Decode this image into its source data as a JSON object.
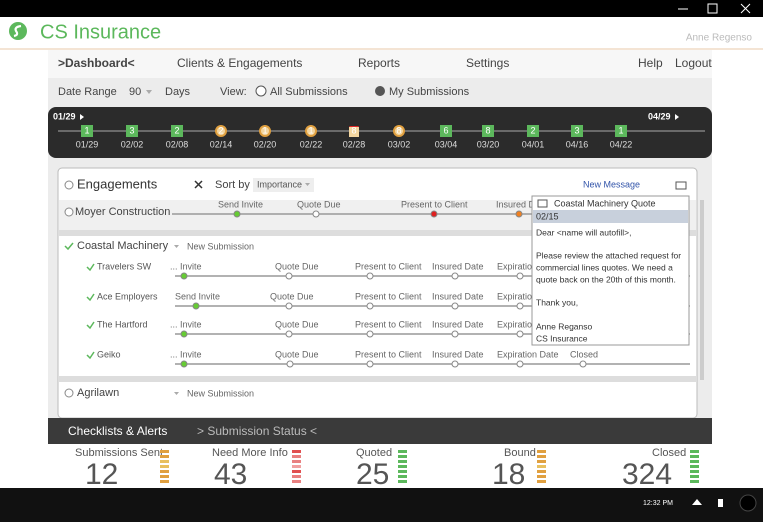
{
  "window": {
    "app_title": "CS Insurance",
    "user": "Anne Regenso"
  },
  "nav": {
    "items": [
      ">Dashboard<",
      "Clients & Engagements",
      "Reports",
      "Settings",
      "Help",
      "Logout"
    ]
  },
  "filters": {
    "date_range_label": "Date Range",
    "date_range_value": 90,
    "date_range_unit": "Days",
    "view_label": "View:",
    "options": [
      "All Submissions",
      "My Submissions"
    ]
  },
  "timeline": {
    "start": "01/29",
    "end": "04/29",
    "points": [
      {
        "date": "01/29",
        "count": 1,
        "color": "#5cb85c",
        "shape": "square"
      },
      {
        "date": "02/02",
        "count": 3,
        "color": "#5cb85c",
        "shape": "square"
      },
      {
        "date": "02/08",
        "count": 2,
        "color": "#5cb85c",
        "shape": "square"
      },
      {
        "date": "02/14",
        "count": 2,
        "color": "#e0a040",
        "shape": "circle"
      },
      {
        "date": "02/20",
        "count": 1,
        "color": "#e0a040",
        "shape": "circle"
      },
      {
        "date": "02/22",
        "count": 1,
        "color": "#e0a040",
        "shape": "circle"
      },
      {
        "date": "02/28",
        "count": 8,
        "color": "#e02828",
        "shape": "triangle"
      },
      {
        "date": "03/02",
        "count": 8,
        "color": "#e0a040",
        "shape": "circle"
      },
      {
        "date": "03/04",
        "count": 6,
        "color": "#5cb85c",
        "shape": "square"
      },
      {
        "date": "03/20",
        "count": 8,
        "color": "#5cb85c",
        "shape": "square"
      },
      {
        "date": "04/01",
        "count": 2,
        "color": "#5cb85c",
        "shape": "square"
      },
      {
        "date": "04/16",
        "count": 3,
        "color": "#5cb85c",
        "shape": "square"
      },
      {
        "date": "04/22",
        "count": 1,
        "color": "#5cb85c",
        "shape": "square"
      }
    ]
  },
  "engagements": {
    "title": "Engagements",
    "sort_label": "Sort by",
    "sort_value": "Importance",
    "new_message": "New Message",
    "clients": [
      {
        "name": "Moyer Construction",
        "stages": [
          "Send Invite",
          "Quote Due",
          "Present to Client",
          "Insured D"
        ]
      },
      {
        "name": "Coastal Machinery",
        "action": "New Submission",
        "carriers": [
          {
            "name": "Travelers SW",
            "stages": [
              "... Invite",
              "Quote Due",
              "Present to Client",
              "Insured Date",
              "Expiratio"
            ]
          },
          {
            "name": "Ace Employers",
            "stages": [
              "Send Invite",
              "Quote Due",
              "Present to Client",
              "Insured Date",
              "Expiratio"
            ]
          },
          {
            "name": "The Hartford",
            "stages": [
              "... Invite",
              "Quote Due",
              "Present to Client",
              "Insured Date",
              "Expiratio"
            ]
          },
          {
            "name": "Geiko",
            "stages": [
              "... Invite",
              "Quote Due",
              "Present to Client",
              "Insured Date",
              "Expiration Date",
              "Closed"
            ]
          }
        ]
      },
      {
        "name": "Agrilawn",
        "action": "New Submission"
      }
    ]
  },
  "message": {
    "subject": "Coastal Machinery Quote",
    "date": "02/15",
    "lines": [
      "Dear  <name will autofill>,",
      "Please review the attached request for",
      "commercial lines quotes.  We need a",
      "quote back on the 20th of this month.",
      "Thank you,",
      "Anne Reganso",
      "CS Insurance"
    ]
  },
  "tabs": [
    "Checklists & Alerts",
    "> Submission Status <"
  ],
  "status": [
    {
      "label": "Submissions Sent",
      "value": 12
    },
    {
      "label": "Need More Info",
      "value": 43
    },
    {
      "label": "Quoted",
      "value": 25
    },
    {
      "label": "Bound",
      "value": 18
    },
    {
      "label": "Closed",
      "value": 324
    }
  ],
  "taskbar": {
    "time": "12:32 PM"
  }
}
